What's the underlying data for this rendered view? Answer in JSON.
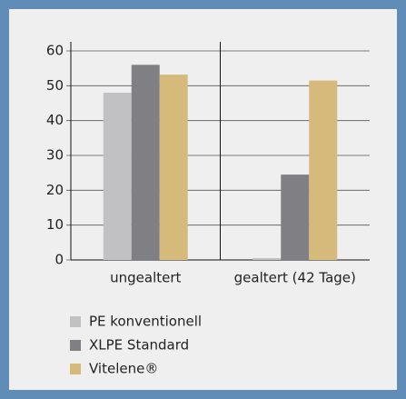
{
  "chart_data": {
    "type": "bar",
    "categories": [
      "ungealtert",
      "gealtert (42 Tage)"
    ],
    "series": [
      {
        "name": "PE konventionell",
        "color": "#c1c1c4",
        "values": [
          48,
          0.5
        ]
      },
      {
        "name": "XLPE Standard",
        "color": "#808084",
        "values": [
          56,
          24.5
        ]
      },
      {
        "name": "Vitelene®",
        "color": "#d5ba7c",
        "values": [
          53.2,
          51.5
        ]
      }
    ],
    "ylim": [
      0,
      60
    ],
    "yticks": [
      0,
      10,
      20,
      30,
      40,
      50,
      60
    ],
    "grid": true
  }
}
